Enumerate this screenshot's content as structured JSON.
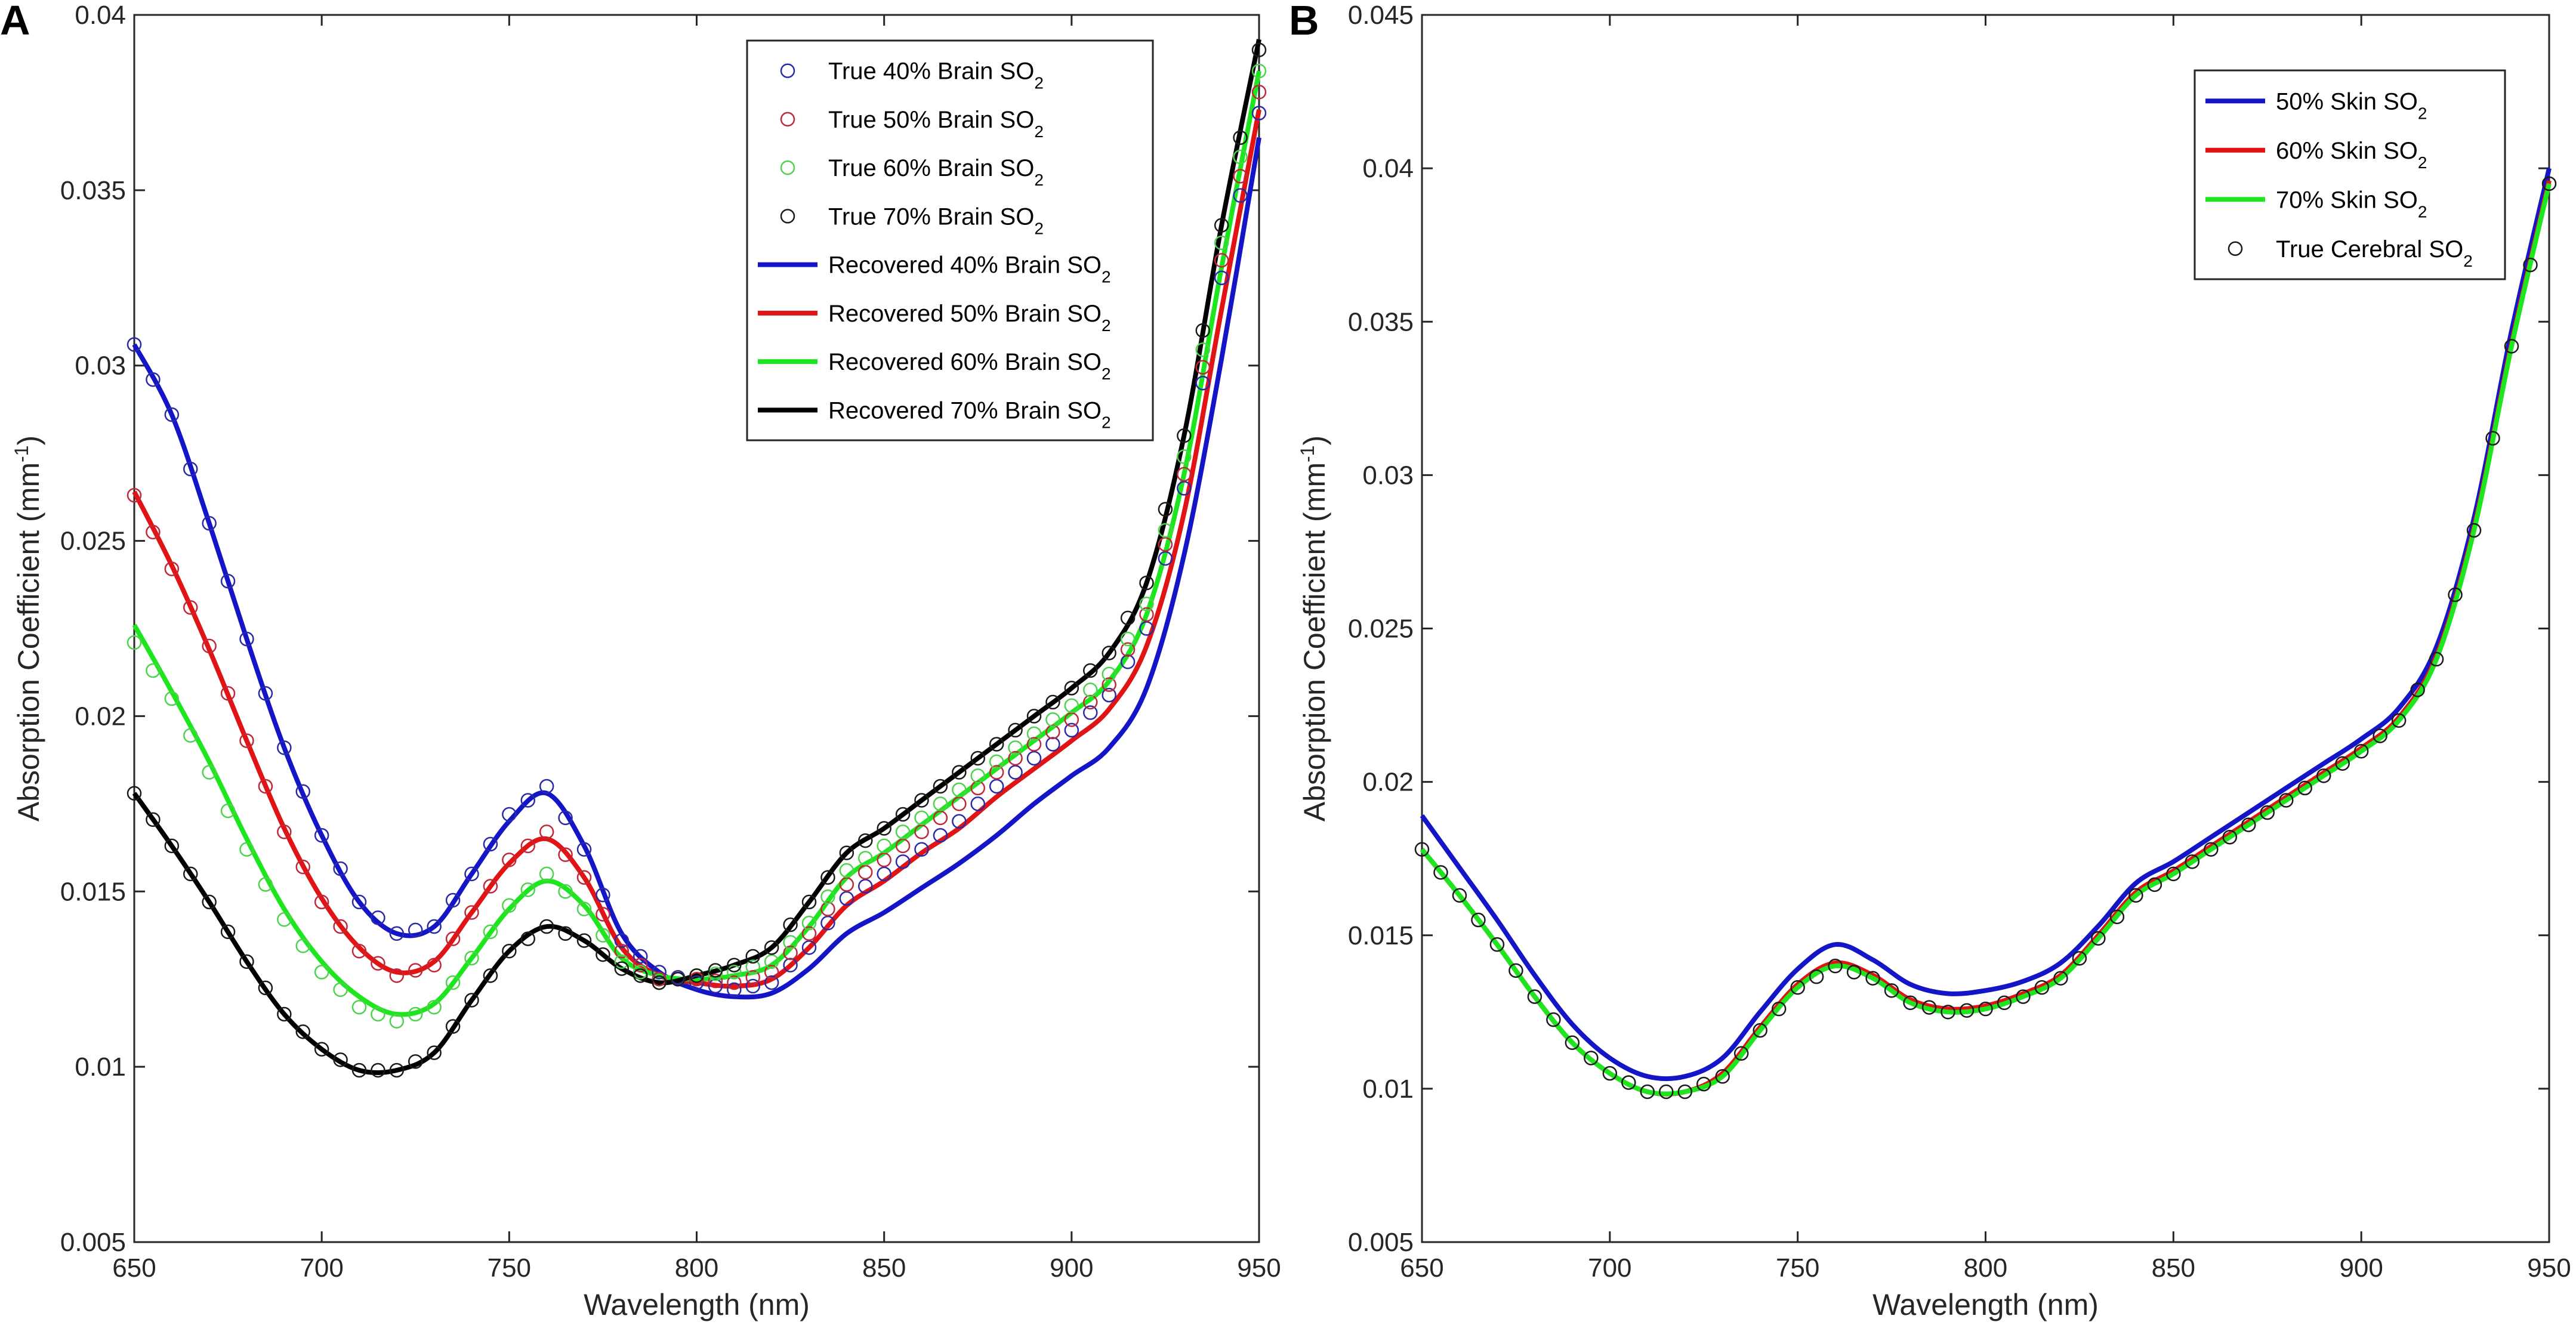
{
  "chart_data": [
    {
      "type": "line",
      "panel": "A",
      "xlabel": "Wavelength (nm)",
      "ylabel": "Absorption Coefficient (mm-1)",
      "ylabel_main": "Absorption Coefficient (mm",
      "ylabel_sup": "-1",
      "ylabel_close": ")",
      "xlim": [
        650,
        950
      ],
      "ylim": [
        0.005,
        0.04
      ],
      "xticks": [
        "650",
        "700",
        "750",
        "800",
        "850",
        "900",
        "950"
      ],
      "yticks": [
        "0.005",
        "0.01",
        "0.015",
        "0.02",
        "0.025",
        "0.03",
        "0.035",
        "0.04"
      ],
      "legend_position": "top-right",
      "wavelengths": [
        650,
        660,
        670,
        680,
        690,
        700,
        710,
        720,
        730,
        740,
        750,
        760,
        770,
        780,
        790,
        800,
        810,
        820,
        830,
        840,
        850,
        860,
        870,
        880,
        890,
        900,
        910,
        920,
        930,
        940,
        950
      ],
      "series": [
        {
          "name": "True 40% Brain SO2",
          "label": "True 40% Brain SO",
          "style": "marker",
          "color": "#2a2aa8",
          "values": [
            0.0306,
            0.0286,
            0.0255,
            0.0222,
            0.0191,
            0.0166,
            0.0147,
            0.0138,
            0.014,
            0.0155,
            0.0172,
            0.018,
            0.0162,
            0.0136,
            0.0127,
            0.0124,
            0.0122,
            0.0124,
            0.0134,
            0.0148,
            0.0155,
            0.0162,
            0.017,
            0.018,
            0.0188,
            0.0196,
            0.0206,
            0.0225,
            0.0265,
            0.0325,
            0.0372
          ]
        },
        {
          "name": "True 50% Brain SO2",
          "label": "True 50% Brain SO",
          "style": "marker",
          "color": "#c0283a",
          "values": [
            0.0263,
            0.0242,
            0.022,
            0.0193,
            0.0167,
            0.0147,
            0.0133,
            0.0126,
            0.0129,
            0.0144,
            0.0159,
            0.0167,
            0.0154,
            0.0133,
            0.0125,
            0.0125,
            0.0124,
            0.0127,
            0.0138,
            0.0152,
            0.0159,
            0.0167,
            0.0175,
            0.0184,
            0.0192,
            0.0199,
            0.0209,
            0.0229,
            0.0269,
            0.033,
            0.0378
          ]
        },
        {
          "name": "True 60% Brain SO2",
          "label": "True 60% Brain SO",
          "style": "marker",
          "color": "#4ed24e",
          "values": [
            0.0221,
            0.0205,
            0.0184,
            0.0162,
            0.0142,
            0.0127,
            0.0117,
            0.0113,
            0.0117,
            0.0131,
            0.0146,
            0.0155,
            0.0145,
            0.013,
            0.0124,
            0.0126,
            0.0127,
            0.013,
            0.0141,
            0.0156,
            0.0163,
            0.0171,
            0.0179,
            0.0187,
            0.0195,
            0.0203,
            0.0212,
            0.0232,
            0.0274,
            0.0335,
            0.0384
          ]
        },
        {
          "name": "True 70% Brain SO2",
          "label": "True 70% Brain SO",
          "style": "marker",
          "color": "#1a1a1a",
          "values": [
            0.0178,
            0.0163,
            0.0147,
            0.013,
            0.0115,
            0.0105,
            0.0099,
            0.0099,
            0.0104,
            0.0119,
            0.0133,
            0.014,
            0.0136,
            0.0128,
            0.0124,
            0.0126,
            0.0129,
            0.0134,
            0.0147,
            0.0161,
            0.0168,
            0.0176,
            0.0184,
            0.0192,
            0.02,
            0.0208,
            0.0218,
            0.0238,
            0.028,
            0.034,
            0.039
          ]
        },
        {
          "name": "Recovered 40% Brain SO2",
          "label": "Recovered 40% Brain SO",
          "style": "line",
          "color": "#1515c8",
          "values": [
            0.0306,
            0.0286,
            0.0255,
            0.0222,
            0.0191,
            0.0166,
            0.0147,
            0.0138,
            0.014,
            0.0155,
            0.017,
            0.0178,
            0.0163,
            0.0138,
            0.0127,
            0.0122,
            0.012,
            0.0121,
            0.0128,
            0.0138,
            0.0144,
            0.0151,
            0.0158,
            0.0166,
            0.0175,
            0.0183,
            0.0191,
            0.0208,
            0.0246,
            0.0302,
            0.0365
          ]
        },
        {
          "name": "Recovered 50% Brain SO2",
          "label": "Recovered 50% Brain SO",
          "style": "line",
          "color": "#e01414",
          "values": [
            0.0264,
            0.0243,
            0.0219,
            0.0193,
            0.0168,
            0.0148,
            0.0134,
            0.0127,
            0.013,
            0.0144,
            0.0158,
            0.0165,
            0.0154,
            0.0134,
            0.0126,
            0.0124,
            0.0123,
            0.0125,
            0.0134,
            0.0146,
            0.0153,
            0.0161,
            0.0168,
            0.0177,
            0.0185,
            0.0193,
            0.0202,
            0.022,
            0.0258,
            0.0316,
            0.0373
          ]
        },
        {
          "name": "Recovered 60% Brain SO2",
          "label": "Recovered 60% Brain SO",
          "style": "line",
          "color": "#1ee61e",
          "values": [
            0.0226,
            0.0207,
            0.0187,
            0.0165,
            0.0145,
            0.013,
            0.012,
            0.0115,
            0.0118,
            0.0131,
            0.0145,
            0.0153,
            0.0146,
            0.0131,
            0.0126,
            0.0125,
            0.0126,
            0.0129,
            0.014,
            0.0154,
            0.0161,
            0.0169,
            0.0177,
            0.0185,
            0.0193,
            0.0201,
            0.021,
            0.0229,
            0.0269,
            0.0328,
            0.0384
          ]
        },
        {
          "name": "Recovered 70% Brain SO2",
          "label": "Recovered 70% Brain SO",
          "style": "line",
          "color": "#000000",
          "values": [
            0.0178,
            0.0163,
            0.0147,
            0.013,
            0.0115,
            0.0105,
            0.0099,
            0.0099,
            0.0104,
            0.0119,
            0.0133,
            0.014,
            0.0136,
            0.0128,
            0.0124,
            0.0126,
            0.0129,
            0.0134,
            0.0147,
            0.0161,
            0.0168,
            0.0176,
            0.0184,
            0.0192,
            0.02,
            0.0208,
            0.0218,
            0.0238,
            0.028,
            0.034,
            0.0393
          ]
        }
      ]
    },
    {
      "type": "line",
      "panel": "B",
      "xlabel": "Wavelength (nm)",
      "ylabel": "Absorption Coefficient (mm-1)",
      "ylabel_main": "Absorption Coefficient (mm",
      "ylabel_sup": "-1",
      "ylabel_close": ")",
      "xlim": [
        650,
        950
      ],
      "ylim": [
        0.005,
        0.045
      ],
      "xticks": [
        "650",
        "700",
        "750",
        "800",
        "850",
        "900",
        "950"
      ],
      "yticks": [
        "0.005",
        "0.01",
        "0.015",
        "0.02",
        "0.025",
        "0.03",
        "0.035",
        "0.04",
        "0.045"
      ],
      "legend_position": "top-right",
      "wavelengths": [
        650,
        660,
        670,
        680,
        690,
        700,
        710,
        720,
        730,
        740,
        750,
        760,
        770,
        780,
        790,
        800,
        810,
        820,
        830,
        840,
        850,
        860,
        870,
        880,
        890,
        900,
        910,
        920,
        930,
        940,
        950
      ],
      "series": [
        {
          "name": "50% Skin SO2",
          "label": "50% Skin SO",
          "style": "line",
          "color": "#1515c8",
          "values": [
            0.0189,
            0.0172,
            0.0155,
            0.0137,
            0.0121,
            0.011,
            0.0104,
            0.0104,
            0.011,
            0.0125,
            0.0139,
            0.0147,
            0.0142,
            0.0134,
            0.0131,
            0.0132,
            0.0135,
            0.0141,
            0.0153,
            0.0167,
            0.0174,
            0.0182,
            0.019,
            0.0198,
            0.0206,
            0.0214,
            0.0224,
            0.0244,
            0.0286,
            0.0347,
            0.04
          ]
        },
        {
          "name": "60% Skin SO2",
          "label": "60% Skin SO",
          "style": "line",
          "color": "#e01414",
          "values": [
            0.0178,
            0.0163,
            0.0147,
            0.013,
            0.0115,
            0.0105,
            0.0099,
            0.0099,
            0.0105,
            0.012,
            0.0134,
            0.0141,
            0.0137,
            0.0129,
            0.0126,
            0.0127,
            0.0131,
            0.0137,
            0.015,
            0.0164,
            0.0171,
            0.0179,
            0.0187,
            0.0195,
            0.0203,
            0.0211,
            0.0221,
            0.0241,
            0.0283,
            0.0343,
            0.0396
          ]
        },
        {
          "name": "70% Skin SO2",
          "label": "70% Skin SO",
          "style": "line",
          "color": "#1ee61e",
          "values": [
            0.0178,
            0.0163,
            0.0147,
            0.013,
            0.0115,
            0.0105,
            0.0099,
            0.0099,
            0.0104,
            0.0119,
            0.0133,
            0.014,
            0.0136,
            0.0128,
            0.0125,
            0.0126,
            0.013,
            0.0136,
            0.0149,
            0.0163,
            0.017,
            0.0178,
            0.0186,
            0.0194,
            0.0202,
            0.021,
            0.022,
            0.024,
            0.0282,
            0.0342,
            0.0395
          ]
        },
        {
          "name": "True Cerebral SO2",
          "label": "True Cerebral SO",
          "style": "marker",
          "color": "#1a1a1a",
          "values": [
            0.0178,
            0.0163,
            0.0147,
            0.013,
            0.0115,
            0.0105,
            0.0099,
            0.0099,
            0.0104,
            0.0119,
            0.0133,
            0.014,
            0.0136,
            0.0128,
            0.0125,
            0.0126,
            0.013,
            0.0136,
            0.0149,
            0.0163,
            0.017,
            0.0178,
            0.0186,
            0.0194,
            0.0202,
            0.021,
            0.022,
            0.024,
            0.0282,
            0.0342,
            0.0395
          ]
        }
      ]
    }
  ]
}
